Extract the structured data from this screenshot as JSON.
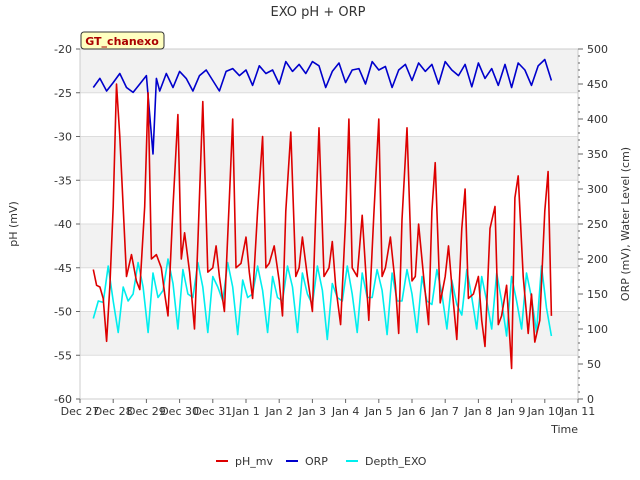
{
  "chart_data": {
    "type": "line",
    "title": "EXO pH + ORP",
    "xlabel": "Time",
    "ylabel_left": "pH (mV)",
    "ylabel_right": "ORP (mV), Water Level (cm)",
    "station_label": "GT_chanexo",
    "grid": true,
    "legend_position": "bottom",
    "x_range": [
      0,
      15
    ],
    "x_ticks": [
      {
        "x": 0,
        "label": "Dec 27"
      },
      {
        "x": 1,
        "label": "Dec 28"
      },
      {
        "x": 2,
        "label": "Dec 29"
      },
      {
        "x": 3,
        "label": "Dec 30"
      },
      {
        "x": 4,
        "label": "Dec 31"
      },
      {
        "x": 5,
        "label": "Jan 1"
      },
      {
        "x": 6,
        "label": "Jan 2"
      },
      {
        "x": 7,
        "label": "Jan 3"
      },
      {
        "x": 8,
        "label": "Jan 4"
      },
      {
        "x": 9,
        "label": "Jan 5"
      },
      {
        "x": 10,
        "label": "Jan 6"
      },
      {
        "x": 11,
        "label": "Jan 7"
      },
      {
        "x": 12,
        "label": "Jan 8"
      },
      {
        "x": 13,
        "label": "Jan 9"
      },
      {
        "x": 14,
        "label": "Jan 10"
      },
      {
        "x": 15,
        "label": "Jan 11"
      }
    ],
    "y_left_range": [
      -60,
      -20
    ],
    "y_left_ticks": [
      -60,
      -55,
      -50,
      -45,
      -40,
      -35,
      -30,
      -25,
      -20
    ],
    "y_right_range": [
      0,
      500
    ],
    "y_right_ticks": [
      0,
      50,
      100,
      150,
      200,
      250,
      300,
      350,
      400,
      450,
      500
    ],
    "series": [
      {
        "name": "pH_mv",
        "axis": "left",
        "color": "#dd0000",
        "x": [
          0.4,
          0.5,
          0.6,
          0.7,
          0.8,
          0.9,
          1.0,
          1.1,
          1.2,
          1.4,
          1.55,
          1.7,
          1.8,
          1.95,
          2.05,
          2.15,
          2.3,
          2.45,
          2.55,
          2.65,
          2.8,
          2.95,
          3.05,
          3.15,
          3.3,
          3.45,
          3.55,
          3.7,
          3.85,
          4.0,
          4.1,
          4.2,
          4.35,
          4.5,
          4.6,
          4.7,
          4.85,
          5.0,
          5.1,
          5.2,
          5.35,
          5.5,
          5.6,
          5.7,
          5.85,
          6.0,
          6.1,
          6.2,
          6.35,
          6.5,
          6.6,
          6.7,
          6.85,
          7.0,
          7.1,
          7.2,
          7.35,
          7.5,
          7.6,
          7.7,
          7.85,
          8.0,
          8.1,
          8.2,
          8.35,
          8.5,
          8.6,
          8.7,
          8.85,
          9.0,
          9.1,
          9.2,
          9.35,
          9.5,
          9.6,
          9.7,
          9.85,
          10.0,
          10.1,
          10.2,
          10.35,
          10.5,
          10.6,
          10.7,
          10.85,
          11.0,
          11.1,
          11.2,
          11.35,
          11.5,
          11.6,
          11.7,
          11.85,
          12.0,
          12.1,
          12.2,
          12.35,
          12.5,
          12.6,
          12.7,
          12.85,
          13.0,
          13.1,
          13.2,
          13.35,
          13.5,
          13.6,
          13.7,
          13.85,
          14.0,
          14.1,
          14.2
        ],
        "values": [
          -45.2,
          -47.0,
          -47.2,
          -48.5,
          -53.4,
          -47.0,
          -38.0,
          -24.0,
          -30.0,
          -46.0,
          -43.5,
          -46.5,
          -47.5,
          -38.0,
          -25.0,
          -44.0,
          -43.5,
          -45.0,
          -48.0,
          -50.5,
          -38.0,
          -27.5,
          -44.0,
          -41.0,
          -45.5,
          -52.0,
          -42.0,
          -26.0,
          -45.5,
          -45.0,
          -42.5,
          -46.0,
          -50.0,
          -37.0,
          -28.0,
          -45.0,
          -44.5,
          -41.5,
          -45.5,
          -48.5,
          -38.5,
          -30.0,
          -45.0,
          -44.5,
          -42.5,
          -46.5,
          -50.5,
          -38.5,
          -29.5,
          -46.0,
          -45.0,
          -41.5,
          -46.0,
          -50.0,
          -39.0,
          -29.0,
          -46.0,
          -45.0,
          -42.0,
          -47.0,
          -51.5,
          -39.5,
          -28.0,
          -45.0,
          -46.0,
          -39.0,
          -45.0,
          -51.0,
          -39.0,
          -28.0,
          -46.0,
          -45.0,
          -41.5,
          -47.0,
          -52.5,
          -39.5,
          -29.0,
          -46.5,
          -46.0,
          -40.0,
          -46.0,
          -51.5,
          -38.5,
          -33.0,
          -49.0,
          -46.0,
          -42.5,
          -47.0,
          -53.2,
          -40.5,
          -36.0,
          -48.5,
          -48.0,
          -46.0,
          -51.0,
          -54.0,
          -40.5,
          -38.0,
          -51.5,
          -50.5,
          -47.0,
          -56.5,
          -37.0,
          -34.5,
          -46.0,
          -52.5,
          -48.0,
          -53.5,
          -51.0,
          -38.5,
          -34.0,
          -50.5
        ]
      },
      {
        "name": "ORP",
        "axis": "right",
        "color": "#0000cc",
        "x": [
          0.4,
          0.6,
          0.8,
          1.0,
          1.2,
          1.4,
          1.6,
          1.8,
          2.0,
          2.2,
          2.3,
          2.4,
          2.6,
          2.8,
          3.0,
          3.2,
          3.4,
          3.6,
          3.8,
          4.0,
          4.2,
          4.4,
          4.6,
          4.8,
          5.0,
          5.2,
          5.4,
          5.6,
          5.8,
          6.0,
          6.2,
          6.4,
          6.6,
          6.8,
          7.0,
          7.2,
          7.4,
          7.6,
          7.8,
          8.0,
          8.2,
          8.4,
          8.6,
          8.8,
          9.0,
          9.2,
          9.4,
          9.6,
          9.8,
          10.0,
          10.2,
          10.4,
          10.6,
          10.8,
          11.0,
          11.2,
          11.4,
          11.6,
          11.8,
          12.0,
          12.2,
          12.4,
          12.6,
          12.8,
          13.0,
          13.2,
          13.4,
          13.6,
          13.8,
          14.0,
          14.2
        ],
        "values": [
          445,
          458,
          440,
          452,
          465,
          445,
          438,
          450,
          462,
          350,
          458,
          440,
          465,
          445,
          468,
          458,
          440,
          462,
          470,
          455,
          440,
          468,
          472,
          462,
          470,
          448,
          476,
          465,
          470,
          450,
          482,
          468,
          478,
          465,
          482,
          476,
          445,
          468,
          480,
          452,
          470,
          472,
          450,
          482,
          470,
          475,
          445,
          470,
          478,
          455,
          480,
          468,
          478,
          450,
          482,
          470,
          462,
          478,
          446,
          480,
          458,
          472,
          448,
          478,
          445,
          480,
          470,
          448,
          476,
          485,
          455
        ]
      },
      {
        "name": "Depth_EXO",
        "axis": "right",
        "color": "#00eeee",
        "x": [
          0.4,
          0.55,
          0.7,
          0.85,
          1.0,
          1.15,
          1.3,
          1.45,
          1.6,
          1.75,
          1.9,
          2.05,
          2.2,
          2.35,
          2.5,
          2.65,
          2.8,
          2.95,
          3.1,
          3.25,
          3.4,
          3.55,
          3.7,
          3.85,
          4.0,
          4.15,
          4.3,
          4.45,
          4.6,
          4.75,
          4.9,
          5.05,
          5.2,
          5.35,
          5.5,
          5.65,
          5.8,
          5.95,
          6.1,
          6.25,
          6.4,
          6.55,
          6.7,
          6.85,
          7.0,
          7.15,
          7.3,
          7.45,
          7.6,
          7.75,
          7.9,
          8.05,
          8.2,
          8.35,
          8.5,
          8.65,
          8.8,
          8.95,
          9.1,
          9.25,
          9.4,
          9.55,
          9.7,
          9.85,
          10.0,
          10.15,
          10.3,
          10.45,
          10.6,
          10.75,
          10.9,
          11.05,
          11.2,
          11.35,
          11.5,
          11.65,
          11.8,
          11.95,
          12.1,
          12.25,
          12.4,
          12.55,
          12.7,
          12.85,
          13.0,
          13.15,
          13.3,
          13.45,
          13.6,
          13.75,
          13.9,
          14.05,
          14.2
        ],
        "values": [
          115,
          140,
          138,
          190,
          140,
          95,
          160,
          140,
          150,
          195,
          160,
          95,
          180,
          145,
          155,
          200,
          165,
          100,
          185,
          150,
          145,
          195,
          160,
          95,
          175,
          160,
          140,
          195,
          160,
          92,
          170,
          145,
          150,
          190,
          155,
          95,
          175,
          145,
          140,
          190,
          160,
          95,
          180,
          150,
          135,
          190,
          155,
          85,
          165,
          145,
          140,
          190,
          150,
          95,
          180,
          145,
          145,
          185,
          155,
          92,
          180,
          140,
          140,
          185,
          150,
          95,
          175,
          140,
          135,
          185,
          150,
          100,
          170,
          135,
          120,
          185,
          145,
          100,
          175,
          140,
          100,
          180,
          140,
          90,
          175,
          140,
          100,
          180,
          145,
          95,
          190,
          130,
          90
        ]
      }
    ]
  }
}
